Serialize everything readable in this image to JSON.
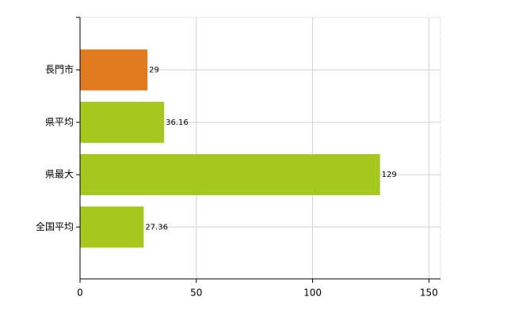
{
  "chart_data": {
    "type": "hbar",
    "categories": [
      "長門市",
      "県平均",
      "県最大",
      "全国平均"
    ],
    "values": [
      29,
      36.16,
      129,
      27.36
    ],
    "colors": [
      "#e07b20",
      "#a4c81e",
      "#a4c81e",
      "#a4c81e"
    ],
    "xlim": [
      0,
      155
    ],
    "xticks": [
      0,
      50,
      100,
      150
    ],
    "grid": true
  }
}
